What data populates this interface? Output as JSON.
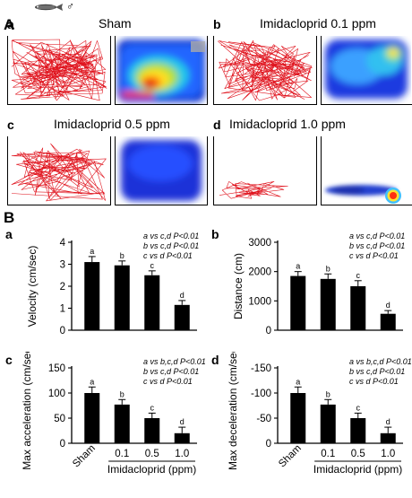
{
  "panel_A": {
    "label": "A",
    "conditions": [
      {
        "letter": "a",
        "title": "Sham"
      },
      {
        "letter": "b",
        "title": "Imidacloprid 0.1 ppm"
      },
      {
        "letter": "c",
        "title": "Imidacloprid 0.5 ppm"
      },
      {
        "letter": "d",
        "title": "Imidacloprid 1.0 ppm"
      }
    ],
    "fish_sex_symbol": "♂",
    "trace_color": "#e0141e"
  },
  "panel_B": {
    "label": "B"
  },
  "chart_data": [
    {
      "type": "bar",
      "letter": "a",
      "categories": [
        "Sham",
        "0.1",
        "0.5",
        "1.0"
      ],
      "values": [
        3.1,
        2.95,
        2.5,
        1.15
      ],
      "errors": [
        0.25,
        0.2,
        0.2,
        0.2
      ],
      "sig_letters": [
        "a",
        "b",
        "c",
        "d"
      ],
      "ylabel": "Velocity (cm/sec)",
      "ylim": [
        0,
        4
      ],
      "yticks": [
        0,
        1,
        2,
        3,
        4
      ],
      "ytick_labels": [
        "0",
        "1",
        "2",
        "3",
        "4"
      ],
      "annotations": [
        "a vs c,d P<0.01",
        "b vs c,d P<0.01",
        "c vs d P<0.01"
      ]
    },
    {
      "type": "bar",
      "letter": "b",
      "categories": [
        "Sham",
        "0.1",
        "0.5",
        "1.0"
      ],
      "values": [
        1850,
        1750,
        1500,
        560
      ],
      "errors": [
        150,
        170,
        190,
        110
      ],
      "sig_letters": [
        "a",
        "b",
        "c",
        "d"
      ],
      "ylabel": "Distance (cm)",
      "ylim": [
        0,
        3000
      ],
      "yticks": [
        0,
        1000,
        2000,
        3000
      ],
      "ytick_labels": [
        "0",
        "1000",
        "2000",
        "3000"
      ],
      "annotations": [
        "a vs c,d P<0.01",
        "b vs c,d P<0.01",
        "c vs d P<0.01"
      ]
    },
    {
      "type": "bar",
      "letter": "c",
      "categories": [
        "Sham",
        "0.1",
        "0.5",
        "1.0"
      ],
      "values": [
        100,
        77,
        50,
        20
      ],
      "errors": [
        12,
        10,
        10,
        12
      ],
      "sig_letters": [
        "a",
        "b",
        "c",
        "d"
      ],
      "ylabel": "Max acceleration (cm/sec )",
      "ylim": [
        0,
        150
      ],
      "yticks": [
        0,
        50,
        100,
        150
      ],
      "ytick_labels": [
        "0",
        "50",
        "100",
        "150"
      ],
      "annotations": [
        "a vs b,c,d P<0.01",
        "b vs c,d P<0.01",
        "c vs d P<0.01"
      ],
      "xlabel": "Imidacloprid (ppm)"
    },
    {
      "type": "bar",
      "letter": "d",
      "categories": [
        "Sham",
        "0.1",
        "0.5",
        "1.0"
      ],
      "values": [
        100,
        77,
        50,
        20
      ],
      "errors": [
        12,
        10,
        10,
        12
      ],
      "sig_letters": [
        "a",
        "b",
        "c",
        "d"
      ],
      "ylabel": "Max deceleration (cm/sec )",
      "ylim": [
        0,
        150
      ],
      "yticks": [
        0,
        50,
        100,
        150
      ],
      "ytick_labels": [
        "0",
        "-50",
        "-100",
        "-150"
      ],
      "annotations": [
        "a vs b,c,d P<0.01",
        "b vs c,d P<0.01",
        "c vs d P<0.01"
      ],
      "xlabel": "Imidacloprid (ppm)"
    }
  ]
}
